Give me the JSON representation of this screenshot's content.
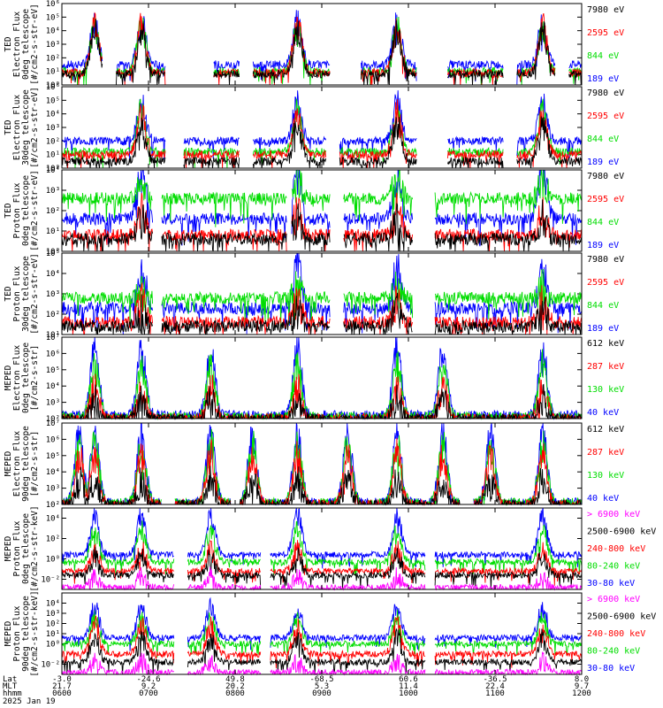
{
  "chart_data": {
    "type": "line",
    "date_label": "2025 Jan 19",
    "x_axis": {
      "row_labels": [
        "Lat",
        "MLT",
        "hhmm"
      ],
      "ticks": [
        {
          "lat": "-3.0",
          "mlt": "21.7",
          "hhmm": "0600"
        },
        {
          "lat": "-24.6",
          "mlt": "9.2",
          "hhmm": "0700"
        },
        {
          "lat": "49.8",
          "mlt": "20.2",
          "hhmm": "0800"
        },
        {
          "lat": "-68.5",
          "mlt": "5.3",
          "hhmm": "0900"
        },
        {
          "lat": "60.6",
          "mlt": "11.4",
          "hhmm": "1000"
        },
        {
          "lat": "-36.5",
          "mlt": "22.4",
          "hhmm": "1100"
        },
        {
          "lat": "8.0",
          "mlt": "9.7",
          "hhmm": "1200"
        }
      ],
      "range_hours": [
        6,
        12
      ]
    },
    "panels": [
      {
        "ylabel": [
          "TED",
          "Electron Flux",
          "0deg telescope",
          "[#/cm2-s-str-eV]"
        ],
        "ylim_exp": [
          0,
          6
        ],
        "log": true,
        "ticks": [
          "10⁰",
          "10¹",
          "10²",
          "10³",
          "10⁴",
          "10⁵",
          "10⁶"
        ],
        "legend": [
          {
            "label": "7980 eV",
            "color": "#000000"
          },
          {
            "label": "2595 eV",
            "color": "#ff0000"
          },
          {
            "label": "844 eV",
            "color": "#00dd00"
          },
          {
            "label": "189 eV",
            "color": "#0000ff"
          }
        ],
        "series": [
          {
            "color": "#0000ff",
            "base": 1.5,
            "peak": 4.6
          },
          {
            "color": "#00dd00",
            "base": 1.0,
            "peak": 4.3
          },
          {
            "color": "#ff0000",
            "base": 0.9,
            "peak": 4.4
          },
          {
            "color": "#000000",
            "base": 0.8,
            "peak": 4.0
          }
        ],
        "peaks_h": [
          6.38,
          6.92,
          8.72,
          9.87,
          11.55
        ],
        "gaps_h": [
          [
            6.47,
            6.62
          ],
          [
            7.2,
            7.75
          ],
          [
            8.05,
            8.2
          ],
          [
            9.1,
            9.45
          ],
          [
            10.1,
            10.45
          ],
          [
            11.1,
            11.25
          ],
          [
            11.7,
            11.85
          ]
        ]
      },
      {
        "ylabel": [
          "TED",
          "Electron Flux",
          "30deg telescope",
          "[#/cm2-s-str-eV]"
        ],
        "ylim_exp": [
          0,
          6
        ],
        "log": true,
        "ticks": [
          "10⁰",
          "10¹",
          "10²",
          "10³",
          "10⁴",
          "10⁵",
          "10⁶"
        ],
        "legend": [
          {
            "label": "7980 eV",
            "color": "#000000"
          },
          {
            "label": "2595 eV",
            "color": "#ff0000"
          },
          {
            "label": "844 eV",
            "color": "#00dd00"
          },
          {
            "label": "189 eV",
            "color": "#0000ff"
          }
        ],
        "series": [
          {
            "color": "#0000ff",
            "base": 2.0,
            "peak": 4.8
          },
          {
            "color": "#00dd00",
            "base": 1.2,
            "peak": 4.2
          },
          {
            "color": "#ff0000",
            "base": 1.0,
            "peak": 4.0
          },
          {
            "color": "#000000",
            "base": 0.5,
            "peak": 3.2
          }
        ],
        "peaks_h": [
          6.92,
          8.72,
          9.87,
          11.55
        ],
        "gaps_h": [
          [
            7.2,
            7.4
          ],
          [
            8.05,
            8.2
          ],
          [
            9.05,
            9.2
          ],
          [
            10.1,
            10.45
          ],
          [
            11.1,
            11.25
          ]
        ]
      },
      {
        "ylabel": [
          "TED",
          "Proton Flux",
          "0deg telescope",
          "[#/cm2-s-str-eV]"
        ],
        "ylim_exp": [
          0,
          4
        ],
        "log": true,
        "ticks": [
          "10⁰",
          "10¹",
          "10²",
          "10³",
          "10⁴"
        ],
        "legend": [
          {
            "label": "7980 eV",
            "color": "#000000"
          },
          {
            "label": "2595 eV",
            "color": "#ff0000"
          },
          {
            "label": "844 eV",
            "color": "#00dd00"
          },
          {
            "label": "189 eV",
            "color": "#0000ff"
          }
        ],
        "series": [
          {
            "color": "#0000ff",
            "base": 1.6,
            "peak": 3.8
          },
          {
            "color": "#00dd00",
            "base": 2.6,
            "peak": 3.4
          },
          {
            "color": "#ff0000",
            "base": 0.8,
            "peak": 1.8
          },
          {
            "color": "#000000",
            "base": 0.6,
            "peak": 1.5
          }
        ],
        "peaks_h": [
          6.92,
          8.72,
          9.87,
          11.55
        ],
        "gaps_h": [
          [
            7.05,
            7.15
          ],
          [
            8.6,
            8.65
          ],
          [
            9.1,
            9.25
          ],
          [
            10.05,
            10.3
          ]
        ]
      },
      {
        "ylabel": [
          "TED",
          "Proton Flux",
          "30deg telescope",
          "[#/cm2-s-str-eV]"
        ],
        "ylim_exp": [
          1,
          5
        ],
        "log": true,
        "ticks": [
          "10¹",
          "10²",
          "10³",
          "10⁴",
          "10⁵"
        ],
        "legend": [
          {
            "label": "7980 eV",
            "color": "#000000"
          },
          {
            "label": "2595 eV",
            "color": "#ff0000"
          },
          {
            "label": "844 eV",
            "color": "#00dd00"
          },
          {
            "label": "189 eV",
            "color": "#0000ff"
          }
        ],
        "series": [
          {
            "color": "#0000ff",
            "base": 2.3,
            "peak": 4.2
          },
          {
            "color": "#00dd00",
            "base": 2.8,
            "peak": 3.2
          },
          {
            "color": "#ff0000",
            "base": 1.6,
            "peak": 2.5
          },
          {
            "color": "#000000",
            "base": 1.4,
            "peak": 2.0
          }
        ],
        "peaks_h": [
          6.92,
          8.72,
          9.87,
          11.55
        ],
        "gaps_h": [
          [
            7.05,
            7.15
          ],
          [
            9.1,
            9.25
          ],
          [
            10.05,
            10.3
          ]
        ]
      },
      {
        "ylabel": [
          "MEPED",
          "Electron Flux",
          "0deg telescope",
          "[#/cm2-s-str]"
        ],
        "ylim_exp": [
          2,
          7
        ],
        "log": true,
        "ticks": [
          "10²",
          "10³",
          "10⁴",
          "10⁵",
          "10⁶",
          "10⁷"
        ],
        "legend": [
          {
            "label": "612 keV",
            "color": "#000000"
          },
          {
            "label": "287 keV",
            "color": "#ff0000"
          },
          {
            "label": "130 keV",
            "color": "#00dd00"
          },
          {
            "label": "40 keV",
            "color": "#0000ff"
          }
        ],
        "series": [
          {
            "color": "#0000ff",
            "base": 2.2,
            "peak": 6.3
          },
          {
            "color": "#00dd00",
            "base": 2.1,
            "peak": 5.2
          },
          {
            "color": "#ff0000",
            "base": 2.0,
            "peak": 3.8
          },
          {
            "color": "#000000",
            "base": 2.0,
            "peak": 3.2
          }
        ],
        "peaks_h": [
          6.38,
          6.92,
          7.72,
          8.72,
          9.87,
          10.4,
          11.55
        ],
        "gaps_h": []
      },
      {
        "ylabel": [
          "MEPED",
          "Electron Flux",
          "90deg telescope",
          "[#/cm2-s-str]"
        ],
        "ylim_exp": [
          2,
          7
        ],
        "log": true,
        "ticks": [
          "10²",
          "10³",
          "10⁴",
          "10⁵",
          "10⁶",
          "10⁷"
        ],
        "legend": [
          {
            "label": "612 keV",
            "color": "#000000"
          },
          {
            "label": "287 keV",
            "color": "#ff0000"
          },
          {
            "label": "130 keV",
            "color": "#00dd00"
          },
          {
            "label": "40 keV",
            "color": "#0000ff"
          }
        ],
        "series": [
          {
            "color": "#0000ff",
            "base": 2.1,
            "peak": 6.3
          },
          {
            "color": "#00dd00",
            "base": 2.1,
            "peak": 5.6
          },
          {
            "color": "#ff0000",
            "base": 2.0,
            "peak": 5.0
          },
          {
            "color": "#000000",
            "base": 2.0,
            "peak": 3.4
          }
        ],
        "peaks_h": [
          6.2,
          6.38,
          6.92,
          7.72,
          8.2,
          8.72,
          9.3,
          9.87,
          10.4,
          10.95,
          11.55
        ],
        "gaps_h": [
          [
            7.15,
            7.3
          ],
          [
            7.95,
            8.05
          ],
          [
            10.6,
            10.75
          ]
        ]
      },
      {
        "ylabel": [
          "MEPED",
          "Proton Flux",
          "0deg telescope",
          "[#/cm2-s-str-keV]"
        ],
        "ylim_exp": [
          -3,
          5
        ],
        "log": true,
        "ticks": [
          "10⁻²",
          "10⁰",
          "10²",
          "10⁴"
        ],
        "ticks_exp": [
          -2,
          0,
          2,
          4
        ],
        "legend": [
          {
            "label": "> 6900 keV",
            "color": "#ff00ff"
          },
          {
            "label": "2500-6900 keV",
            "color": "#000000"
          },
          {
            "label": "240-800 keV",
            "color": "#ff0000"
          },
          {
            "label": "80-240 keV",
            "color": "#00dd00"
          },
          {
            "label": "30-80 keV",
            "color": "#0000ff"
          }
        ],
        "series": [
          {
            "color": "#0000ff",
            "base": 0.4,
            "peak": 4.3
          },
          {
            "color": "#00dd00",
            "base": -0.3,
            "peak": 2.8
          },
          {
            "color": "#ff0000",
            "base": -1.2,
            "peak": 0.9
          },
          {
            "color": "#000000",
            "base": -1.6,
            "peak": 0.2
          },
          {
            "color": "#ff00ff",
            "base": -2.8,
            "peak": -1.8
          }
        ],
        "peaks_h": [
          6.38,
          6.92,
          7.72,
          8.72,
          9.87,
          11.55
        ],
        "gaps_h": [
          [
            7.3,
            7.45
          ],
          [
            8.3,
            8.4
          ],
          [
            10.2,
            10.3
          ]
        ]
      },
      {
        "ylabel": [
          "MEPED",
          "Proton Flux",
          "90deg telescope",
          "[#/cm2-s-str-keV]"
        ],
        "ylim_exp": [
          -3,
          5
        ],
        "log": true,
        "ticks": [
          "10⁻²",
          "10⁰",
          "10¹",
          "10²",
          "10³",
          "10⁴"
        ],
        "ticks_exp": [
          -2,
          0,
          1,
          2,
          3,
          4
        ],
        "legend": [
          {
            "label": "> 6900 keV",
            "color": "#ff00ff"
          },
          {
            "label": "2500-6900 keV",
            "color": "#000000"
          },
          {
            "label": "240-800 keV",
            "color": "#ff0000"
          },
          {
            "label": "80-240 keV",
            "color": "#00dd00"
          },
          {
            "label": "30-80 keV",
            "color": "#0000ff"
          }
        ],
        "series": [
          {
            "color": "#0000ff",
            "base": 0.6,
            "peak": 3.6
          },
          {
            "color": "#00dd00",
            "base": 0.0,
            "peak": 2.3
          },
          {
            "color": "#ff0000",
            "base": -1.0,
            "peak": 1.8
          },
          {
            "color": "#000000",
            "base": -1.8,
            "peak": 0.5
          },
          {
            "color": "#ff00ff",
            "base": -2.8,
            "peak": -1.8
          }
        ],
        "peaks_h": [
          6.38,
          6.92,
          7.72,
          8.72,
          9.87,
          11.55
        ],
        "gaps_h": [
          [
            7.3,
            7.45
          ],
          [
            8.3,
            8.4
          ],
          [
            10.2,
            10.3
          ]
        ]
      }
    ]
  }
}
